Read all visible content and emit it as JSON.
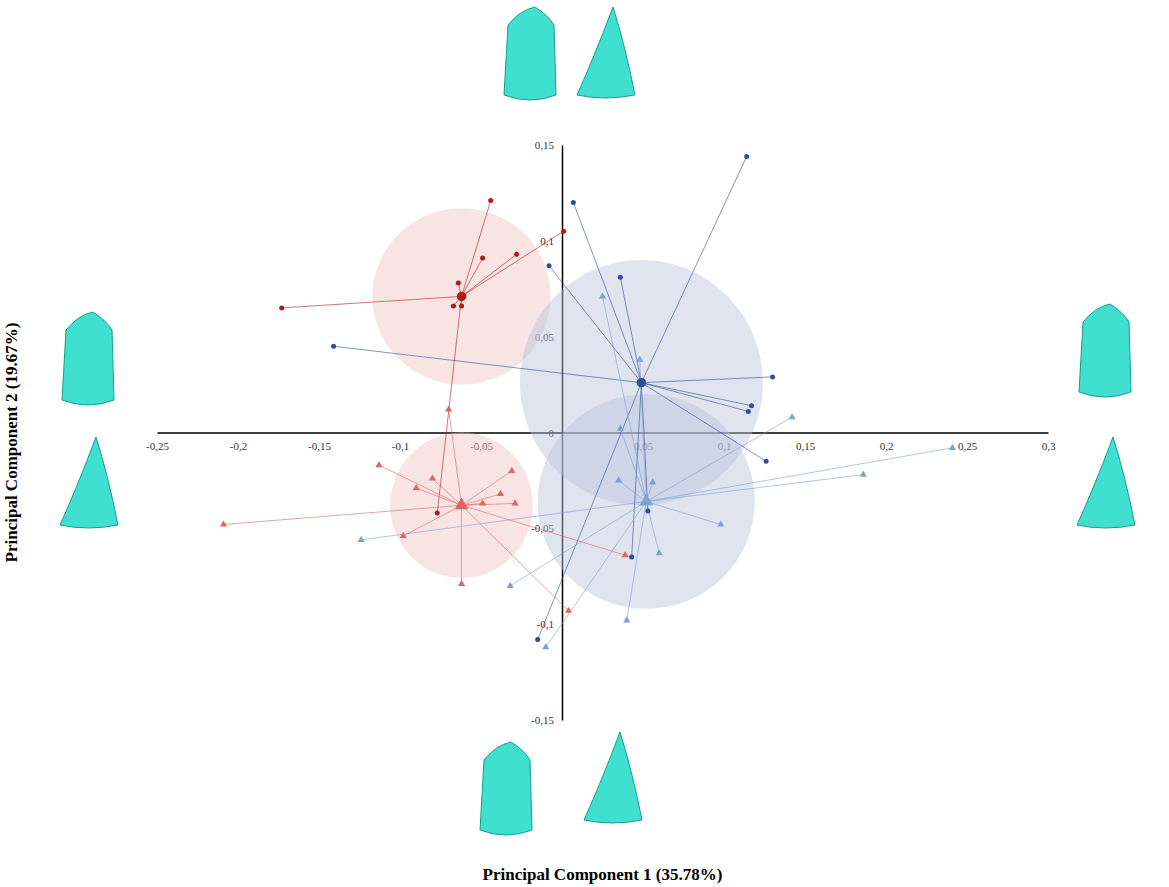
{
  "chart_data": {
    "type": "scatter",
    "x_label": "Principal Component 1 (35.78%)",
    "y_label": "Principal Component 2 (19.67%)",
    "xlim": [
      -0.25,
      0.3
    ],
    "ylim": [
      -0.15,
      0.15
    ],
    "xticks": [
      {
        "value": -0.25,
        "label": "-0,25"
      },
      {
        "value": -0.2,
        "label": "-0,2"
      },
      {
        "value": -0.15,
        "label": "-0,15"
      },
      {
        "value": -0.1,
        "label": "-0,1"
      },
      {
        "value": -0.05,
        "label": "-0,05"
      },
      {
        "value": 0.05,
        "label": "0,05"
      },
      {
        "value": 0.1,
        "label": "0,1"
      },
      {
        "value": 0.15,
        "label": "0,15"
      },
      {
        "value": 0.2,
        "label": "0,2"
      },
      {
        "value": 0.25,
        "label": "0,25"
      },
      {
        "value": 0.3,
        "label": "0,3"
      }
    ],
    "yticks": [
      {
        "value": -0.15,
        "label": "-0,15"
      },
      {
        "value": -0.1,
        "label": "-0,1"
      },
      {
        "value": -0.05,
        "label": "-0,05"
      },
      0,
      {
        "value": 0.05,
        "label": "0,05"
      },
      {
        "value": 0.1,
        "label": "0,1"
      },
      {
        "value": 0.15,
        "label": "0,15"
      }
    ],
    "grid": false,
    "series": [
      {
        "color": "#b01c1c",
        "marker": "circle",
        "centroid": [
          -0.062,
          0.071
        ],
        "radius_x": 0.055,
        "radius_y": 0.046,
        "x": [
          -0.044,
          0.001,
          -0.028,
          -0.049,
          -0.064,
          -0.173,
          -0.067,
          -0.062,
          -0.077
        ],
        "values": [
          0.121,
          0.105,
          0.093,
          0.091,
          0.078,
          0.065,
          0.066,
          0.066,
          -0.042
        ]
      },
      {
        "color": "#e06464",
        "marker": "triangle",
        "centroid": [
          -0.062,
          -0.038
        ],
        "radius_x": 0.044,
        "radius_y": 0.038,
        "x": [
          -0.07,
          -0.113,
          -0.08,
          -0.209,
          -0.031,
          -0.038,
          -0.029,
          -0.09,
          -0.062,
          -0.098,
          0.004,
          0.039,
          -0.049
        ],
        "values": [
          0.012,
          -0.017,
          -0.024,
          -0.048,
          -0.02,
          -0.032,
          -0.037,
          -0.029,
          -0.079,
          -0.054,
          -0.093,
          -0.064,
          -0.037
        ]
      },
      {
        "color": "#2e4f9a",
        "marker": "circle",
        "centroid": [
          0.049,
          0.026
        ],
        "radius_x": 0.075,
        "radius_y": 0.064,
        "x": [
          0.114,
          0.007,
          -0.008,
          0.036,
          -0.141,
          0.13,
          0.117,
          0.115,
          0.126,
          0.053,
          0.043,
          -0.015
        ],
        "values": [
          0.144,
          0.12,
          0.087,
          0.081,
          0.045,
          0.029,
          0.014,
          0.011,
          -0.015,
          -0.041,
          -0.065,
          -0.108
        ]
      },
      {
        "color": "#7f9fd6",
        "marker": "triangle",
        "centroid": [
          0.052,
          -0.036
        ],
        "radius_x": 0.067,
        "radius_y": 0.056,
        "x": [
          0.025,
          0.048,
          0.142,
          0.186,
          0.241,
          0.036,
          0.035,
          -0.124,
          -0.032,
          0.06,
          0.098,
          0.04,
          -0.01,
          0.056
        ],
        "values": [
          0.071,
          0.038,
          0.008,
          -0.022,
          -0.008,
          0.002,
          -0.025,
          -0.056,
          -0.08,
          -0.063,
          -0.048,
          -0.098,
          -0.112,
          -0.026
        ]
      }
    ]
  }
}
